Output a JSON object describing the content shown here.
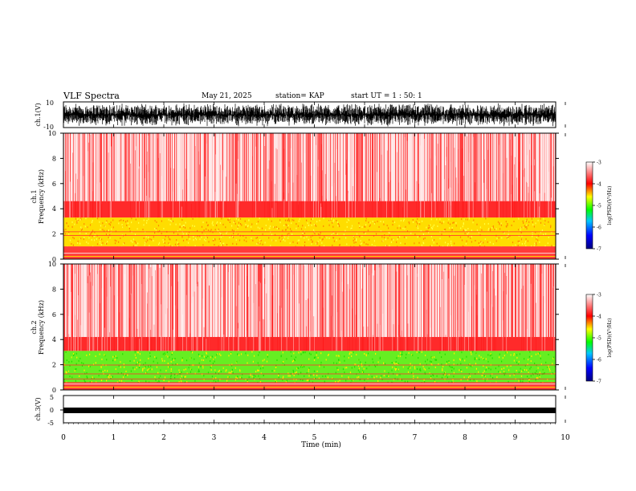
{
  "header": {
    "title": "VLF Spectra",
    "date": "May 21, 2025",
    "station": "station= KAP",
    "start": "start  UT =   1 : 50: 1"
  },
  "chart_data": [
    {
      "type": "line",
      "id": "ch1-waveform",
      "ylabel": "ch.1(V)",
      "ylim": [
        -10,
        10
      ],
      "yticks": [
        "10",
        "-10"
      ],
      "color": "#000000"
    },
    {
      "type": "heatmap",
      "id": "ch1-spectrogram",
      "ylabel": "ch.1\nFrequency (kHz)",
      "ylabel_lines": [
        "ch.1",
        "Frequency (kHz)"
      ],
      "xlim": [
        0,
        10
      ],
      "ylim": [
        0,
        10
      ],
      "yticks": [
        "0",
        "2",
        "4",
        "6",
        "8",
        "10"
      ],
      "colorbar": {
        "label": "log(PSD)(V²/Hz)",
        "range": [
          -7,
          -3
        ],
        "ticks": [
          "-3",
          "-4",
          "-5",
          "-6",
          "-7"
        ]
      }
    },
    {
      "type": "heatmap",
      "id": "ch2-spectrogram",
      "ylabel": "ch.2\nFrequency (kHz)",
      "ylabel_lines": [
        "ch.2",
        "Frequency (kHz)"
      ],
      "xlim": [
        0,
        10
      ],
      "ylim": [
        0,
        10
      ],
      "yticks": [
        "0",
        "2",
        "4",
        "6",
        "8",
        "10"
      ],
      "colorbar": {
        "label": "log(PSD)(V²/Hz)",
        "range": [
          -7,
          -3
        ],
        "ticks": [
          "-3",
          "-4",
          "-5",
          "-6",
          "-7"
        ]
      }
    },
    {
      "type": "line",
      "id": "ch3-waveform",
      "ylabel": "ch.3(V)",
      "ylim": [
        -5,
        5
      ],
      "yticks": [
        "5",
        "0",
        "-5"
      ],
      "xlabel": "Time (min)",
      "xlim": [
        0,
        10
      ],
      "xticks": [
        "0",
        "1",
        "2",
        "3",
        "4",
        "5",
        "6",
        "7",
        "8",
        "9",
        "10"
      ]
    }
  ],
  "colors": {
    "colormap": [
      "#000080",
      "#0000ff",
      "#00ffff",
      "#00ff00",
      "#ffff00",
      "#ff8000",
      "#ff0000",
      "#ffffff"
    ],
    "waveform": "#000000"
  }
}
